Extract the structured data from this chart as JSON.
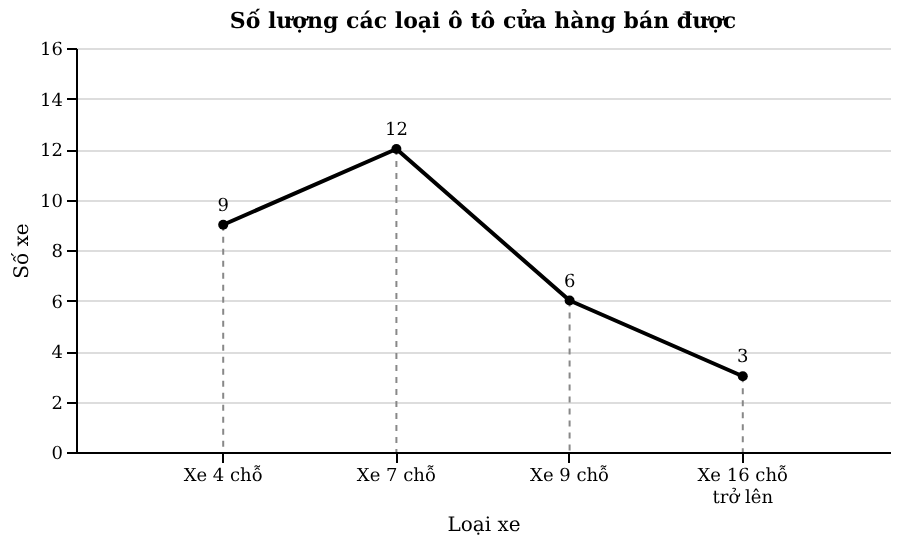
{
  "chart_data": {
    "type": "line",
    "title": "Số lượng các loại ô tô cửa hàng bán được",
    "xlabel": "Loại xe",
    "ylabel": "Số xe",
    "categories": [
      "Xe 4 chỗ",
      "Xe 7 chỗ",
      "Xe 9 chỗ",
      "Xe 16 chỗ trở lên"
    ],
    "series": [
      {
        "color": "#000000",
        "values": [
          9,
          12,
          6,
          3
        ]
      }
    ],
    "ylim": [
      0,
      16
    ],
    "yticks": [
      0,
      2,
      4,
      6,
      8,
      10,
      12,
      14,
      16
    ],
    "grid": "y",
    "marker": "circle",
    "line_style": "solid",
    "data_labels": true
  }
}
